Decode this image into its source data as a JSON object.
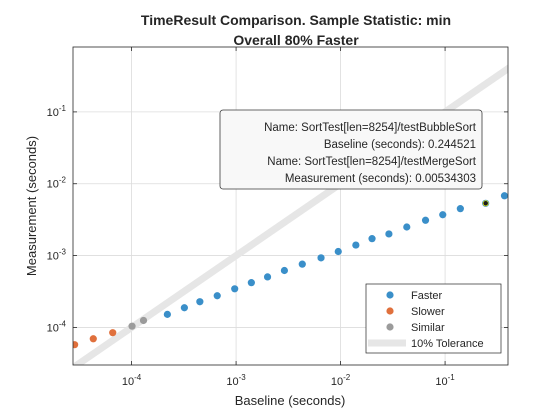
{
  "chart_data": {
    "type": "scatter",
    "title": "TimeResult Comparison. Sample Statistic: min",
    "subtitle": "Overall 80% Faster",
    "xlabel": "Baseline (seconds)",
    "ylabel": "Measurement (seconds)",
    "xscale": "log",
    "yscale": "log",
    "xlim": [
      2.75e-05,
      0.4
    ],
    "ylim": [
      3e-05,
      0.8
    ],
    "grid": true,
    "x_ticks": [
      {
        "value": 0.0001,
        "base": "10",
        "exp": "-4"
      },
      {
        "value": 0.001,
        "base": "10",
        "exp": "-3"
      },
      {
        "value": 0.01,
        "base": "10",
        "exp": "-2"
      },
      {
        "value": 0.1,
        "base": "10",
        "exp": "-1"
      }
    ],
    "y_ticks": [
      {
        "value": 0.0001,
        "base": "10",
        "exp": "-4"
      },
      {
        "value": 0.001,
        "base": "10",
        "exp": "-3"
      },
      {
        "value": 0.01,
        "base": "10",
        "exp": "-2"
      },
      {
        "value": 0.1,
        "base": "10",
        "exp": "-1"
      }
    ],
    "tolerance_band": {
      "name": "10% Tolerance",
      "color": "#e6e6e6"
    },
    "series": [
      {
        "name": "Faster",
        "color": "#3a8fc9",
        "points": [
          [
            0.00022,
            0.000152
          ],
          [
            0.00032,
            0.000188
          ],
          [
            0.00045,
            0.000228
          ],
          [
            0.00066,
            0.000276
          ],
          [
            0.00097,
            0.000345
          ],
          [
            0.0014,
            0.00042
          ],
          [
            0.002,
            0.000505
          ],
          [
            0.0029,
            0.00062
          ],
          [
            0.0043,
            0.00076
          ],
          [
            0.0065,
            0.00093
          ],
          [
            0.0095,
            0.00114
          ],
          [
            0.014,
            0.0014
          ],
          [
            0.02,
            0.00172
          ],
          [
            0.029,
            0.002
          ],
          [
            0.043,
            0.0025
          ],
          [
            0.065,
            0.0031
          ],
          [
            0.095,
            0.0037
          ],
          [
            0.14,
            0.0045
          ],
          [
            0.244521,
            0.00534303
          ],
          [
            0.37,
            0.0068
          ]
        ]
      },
      {
        "name": "Slower",
        "color": "#e0703c",
        "points": [
          [
            2.85e-05,
            5.75e-05
          ],
          [
            4.3e-05,
            6.95e-05
          ],
          [
            6.6e-05,
            8.45e-05
          ]
        ]
      },
      {
        "name": "Similar",
        "color": "#9b9b9b",
        "points": [
          [
            0.000101,
            0.000104
          ],
          [
            0.00013,
            0.000125
          ]
        ]
      }
    ],
    "highlight": {
      "x": 0.244521,
      "y": 0.00534303,
      "color": "#1a1a1a"
    },
    "legend": {
      "placement": "bottom-right"
    }
  },
  "tooltip": {
    "line1": "Name:  SortTest[len=8254]/testBubbleSort",
    "line2": "Baseline (seconds):  0.244521",
    "line3": "Name:  SortTest[len=8254]/testMergeSort",
    "line4": "Measurement (seconds):  0.00534303"
  }
}
